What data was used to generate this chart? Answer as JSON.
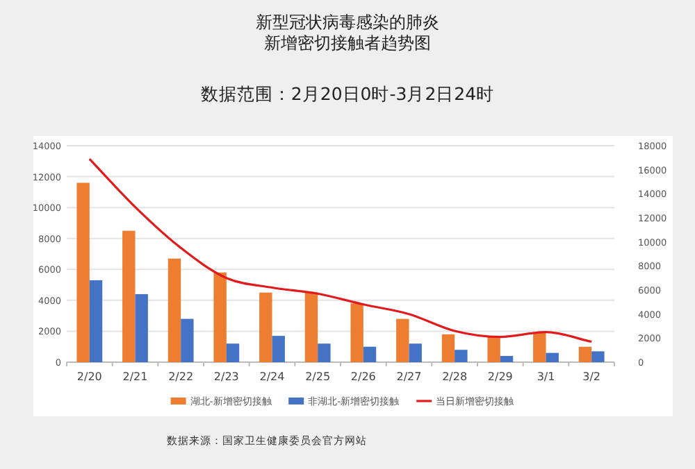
{
  "chart_data": {
    "type": "bar",
    "title": "新型冠状病毒感染的肺炎新增密切接触者趋势图",
    "subtitle": "数据范围：2月20日0时-3月2日24时",
    "categories": [
      "2/20",
      "2/21",
      "2/22",
      "2/23",
      "2/24",
      "2/25",
      "2/26",
      "2/27",
      "2/28",
      "2/29",
      "3/1",
      "3/2"
    ],
    "series": [
      {
        "name": "湖北-新增密切接触",
        "color": "#ed7d31",
        "values": [
          11600,
          8500,
          6700,
          5800,
          4500,
          4500,
          3800,
          2800,
          1800,
          1700,
          1900,
          1000
        ]
      },
      {
        "name": "非湖北-新增密切接触",
        "color": "#4472c4",
        "values": [
          5300,
          4400,
          2800,
          1200,
          1700,
          1200,
          1000,
          1200,
          800,
          400,
          600,
          700
        ]
      },
      {
        "name": "当日新增密切接触",
        "color": "#e31a1c",
        "type": "line",
        "axis": "y2",
        "values": [
          16900,
          12900,
          9500,
          7000,
          6200,
          5700,
          4800,
          4000,
          2600,
          2100,
          2500,
          1700
        ]
      }
    ],
    "ylim": [
      0,
      14000
    ],
    "yticks": [
      0,
      2000,
      4000,
      6000,
      8000,
      10000,
      12000,
      14000
    ],
    "y2lim": [
      0,
      18000
    ],
    "y2ticks": [
      0,
      2000,
      4000,
      6000,
      8000,
      10000,
      12000,
      14000,
      16000,
      18000
    ],
    "grid": "y",
    "legend": "bottom",
    "marker": "none",
    "annotations": [
      "数据来源：国家卫生健康委员会官方网站"
    ]
  }
}
